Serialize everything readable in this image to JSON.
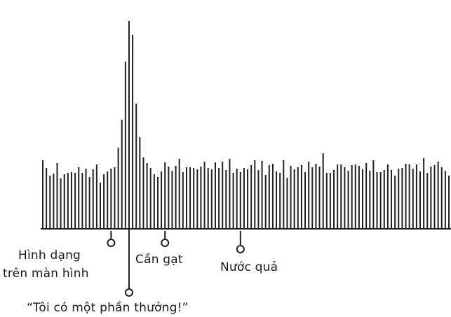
{
  "chart_data": {
    "type": "bar",
    "bar_count": 114,
    "values": [
      0.98,
      0.87,
      0.76,
      0.79,
      0.94,
      0.72,
      0.78,
      0.8,
      0.81,
      0.8,
      0.88,
      0.8,
      0.86,
      0.74,
      0.85,
      0.92,
      0.66,
      0.78,
      0.82,
      0.86,
      0.88,
      1.16,
      1.56,
      2.39,
      2.48,
      2.77,
      1.79,
      1.31,
      1.02,
      0.94,
      0.87,
      0.78,
      0.74,
      0.82,
      0.95,
      0.89,
      0.83,
      0.9,
      1.0,
      0.81,
      0.88,
      0.88,
      0.87,
      0.85,
      0.89,
      0.96,
      0.87,
      0.85,
      0.95,
      0.87,
      0.96,
      0.84,
      1.0,
      0.8,
      0.86,
      0.81,
      0.87,
      0.85,
      0.91,
      0.98,
      0.84,
      0.97,
      0.77,
      0.91,
      0.93,
      0.82,
      0.8,
      0.98,
      0.73,
      0.9,
      0.85,
      0.88,
      0.91,
      0.81,
      0.96,
      0.88,
      0.93,
      0.89,
      1.08,
      0.8,
      0.8,
      0.84,
      0.92,
      0.92,
      0.88,
      0.83,
      0.91,
      0.92,
      0.9,
      0.85,
      0.94,
      0.83,
      0.98,
      0.81,
      0.81,
      0.84,
      0.92,
      0.84,
      0.76,
      0.86,
      0.87,
      0.93,
      0.92,
      0.86,
      0.92,
      0.82,
      1.01,
      0.8,
      0.89,
      0.91,
      0.96,
      0.88,
      0.83,
      0.76
    ],
    "baseline": 1.0,
    "markers": [
      {
        "name": "hinh-dang-tren-man-hinh",
        "bar_index": 19,
        "label_lines": [
          "Hình dạng",
          "trên màn hình"
        ]
      },
      {
        "name": "toi-co-mot-phan-thuong",
        "bar_index": 24,
        "label_lines": [
          "“Tôi có một phần thưởng!”"
        ]
      },
      {
        "name": "can-gat",
        "bar_index": 34,
        "label_lines": [
          "Cần gạt"
        ]
      },
      {
        "name": "nuoc-qua",
        "bar_index": 55,
        "label_lines": [
          "Nước quả"
        ]
      }
    ]
  },
  "colors": {
    "bar": "#1f1f1f",
    "background": "#ffffff",
    "text": "#1a1a1a"
  }
}
